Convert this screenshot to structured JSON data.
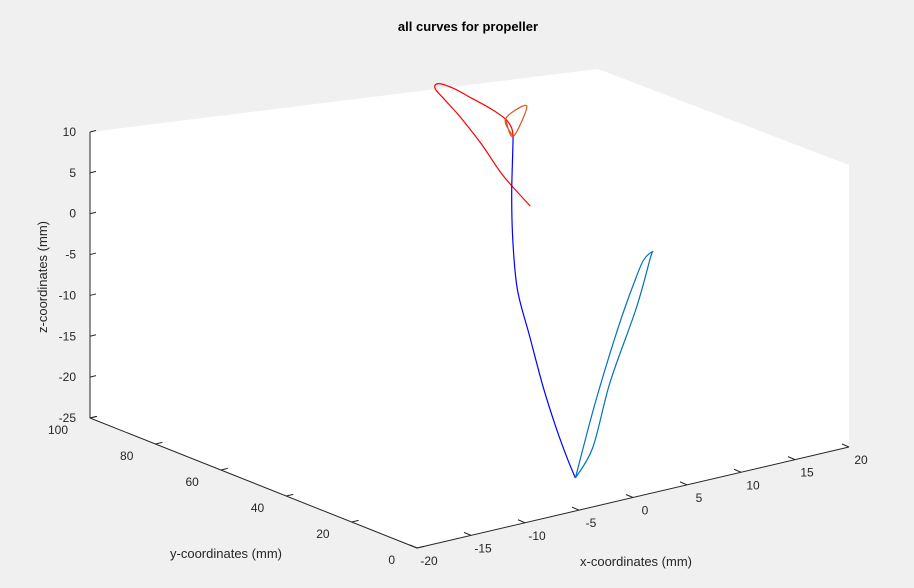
{
  "chart_data": {
    "type": "line",
    "projection": "3d",
    "title": "all curves for propeller",
    "xlabel": "x-coordinates (mm)",
    "ylabel": "y-coordinates (mm)",
    "zlabel": "z-coordinates (mm)",
    "xlim": [
      -20,
      20
    ],
    "ylim": [
      0,
      100
    ],
    "zlim": [
      -25,
      10
    ],
    "x_ticks": [
      "-20",
      "-15",
      "-10",
      "-5",
      "0",
      "5",
      "10",
      "15",
      "20"
    ],
    "y_ticks": [
      "0",
      "20",
      "40",
      "60",
      "80",
      "100"
    ],
    "z_ticks": [
      "-25",
      "-20",
      "-15",
      "-10",
      "-5",
      "0",
      "5",
      "10"
    ],
    "grid": false,
    "colors": {
      "upper_edge": "#ff0000",
      "lower_edge": "#0000ff",
      "root_section": "#0072bd",
      "tip_section": "#d95319"
    },
    "series": [
      {
        "role": "upper_edge",
        "points": [
          [
            2,
            38,
            4
          ],
          [
            2.5,
            48,
            6
          ],
          [
            3.5,
            58,
            8
          ],
          [
            4.5,
            68,
            9.5
          ],
          [
            5.5,
            76,
            10
          ],
          [
            6.5,
            82,
            10
          ],
          [
            8,
            86,
            9.5
          ],
          [
            10,
            88,
            8
          ],
          [
            12,
            89,
            6
          ],
          [
            14,
            90,
            4
          ],
          [
            15.6,
            90.5,
            2.1
          ],
          [
            16,
            90,
            1
          ],
          [
            16,
            89.5,
            0
          ]
        ]
      },
      {
        "role": "lower_edge",
        "points": [
          [
            16,
            89.5,
            0
          ],
          [
            15.5,
            88,
            -2
          ],
          [
            14.2,
            84,
            -6
          ],
          [
            12.5,
            78,
            -10
          ],
          [
            10.5,
            70,
            -14
          ],
          [
            8,
            58,
            -17
          ],
          [
            5,
            44,
            -20
          ],
          [
            2,
            30,
            -22
          ],
          [
            0,
            20,
            -23.5
          ],
          [
            -1.7,
            12,
            -24
          ]
        ]
      },
      {
        "role": "root_section",
        "points": [
          [
            -1.7,
            12,
            -24
          ],
          [
            -0.5,
            10,
            -15
          ],
          [
            1,
            8,
            -6
          ],
          [
            2,
            6,
            0
          ],
          [
            2.5,
            5,
            2.5
          ],
          [
            3,
            4,
            3.5
          ],
          [
            2.5,
            3,
            3
          ],
          [
            1.5,
            4,
            -3
          ],
          [
            0,
            7,
            -12
          ],
          [
            -1,
            9,
            -20
          ],
          [
            -1.7,
            12,
            -24
          ]
        ]
      },
      {
        "role": "tip_section",
        "points": [
          [
            16,
            89.5,
            0
          ],
          [
            15.6,
            90.5,
            2.1
          ],
          [
            16.5,
            87,
            4
          ],
          [
            16,
            89.5,
            0
          ],
          [
            15.6,
            90.5,
            2.1
          ]
        ]
      }
    ]
  }
}
